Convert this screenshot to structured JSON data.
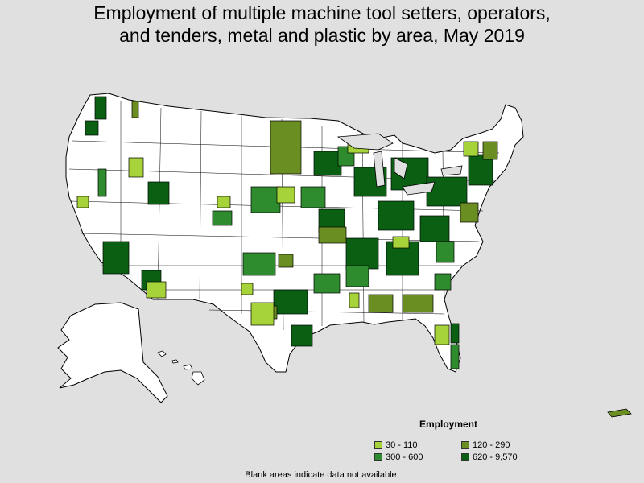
{
  "title": {
    "line1": "Employment of multiple machine tool setters, operators,",
    "line2": "and tenders, metal and plastic by area, May 2019"
  },
  "legend": {
    "title": "Employment",
    "items": [
      {
        "label": "30 - 110",
        "color": "#a6d33a"
      },
      {
        "label": "120 - 290",
        "color": "#6b8e23"
      },
      {
        "label": "300 - 600",
        "color": "#2e8b2e"
      },
      {
        "label": "620 - 9,570",
        "color": "#0a5f12"
      }
    ]
  },
  "footnote": "Blank areas indicate data not available.",
  "colors": {
    "background": "#e0e0e0",
    "land": "#ffffff",
    "border": "#000000"
  }
}
